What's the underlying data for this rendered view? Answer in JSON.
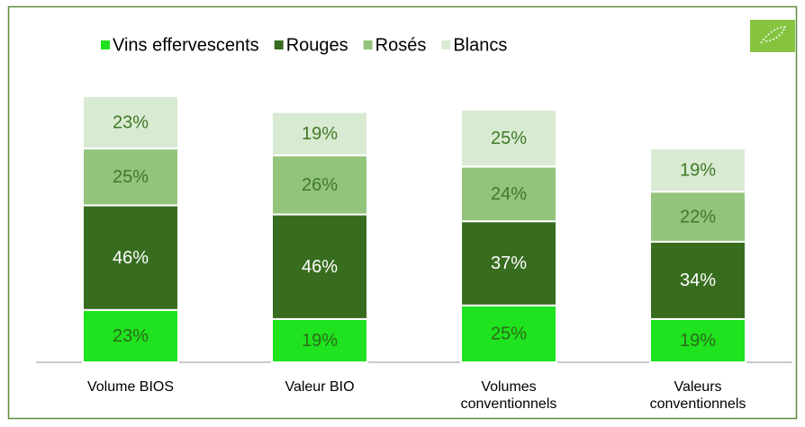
{
  "chart_data": {
    "type": "stacked_bar",
    "categories": [
      "Volume BIOS",
      "Valeur BIO",
      "Volumes conventionnels",
      "Valeurs conventionnels"
    ],
    "series": [
      {
        "name": "Vins effervescents",
        "color": "#1ee31e",
        "values": [
          23,
          19,
          25,
          19
        ],
        "value_labels": [
          "23%",
          "19%",
          "25%",
          "19%"
        ]
      },
      {
        "name": "Rouges",
        "color": "#386d20",
        "values": [
          46,
          46,
          37,
          34
        ],
        "value_labels": [
          "46%",
          "46%",
          "37%",
          "34%"
        ]
      },
      {
        "name": "Rosés",
        "color": "#93c47b",
        "values": [
          25,
          26,
          24,
          22
        ],
        "value_labels": [
          "25%",
          "26%",
          "24%",
          "22%"
        ]
      },
      {
        "name": "Blancs",
        "color": "#d9ead2",
        "values": [
          23,
          19,
          25,
          19
        ],
        "value_labels": [
          "23%",
          "19%",
          "25%",
          "19%"
        ]
      }
    ],
    "ylim": [
      0,
      120
    ]
  }
}
